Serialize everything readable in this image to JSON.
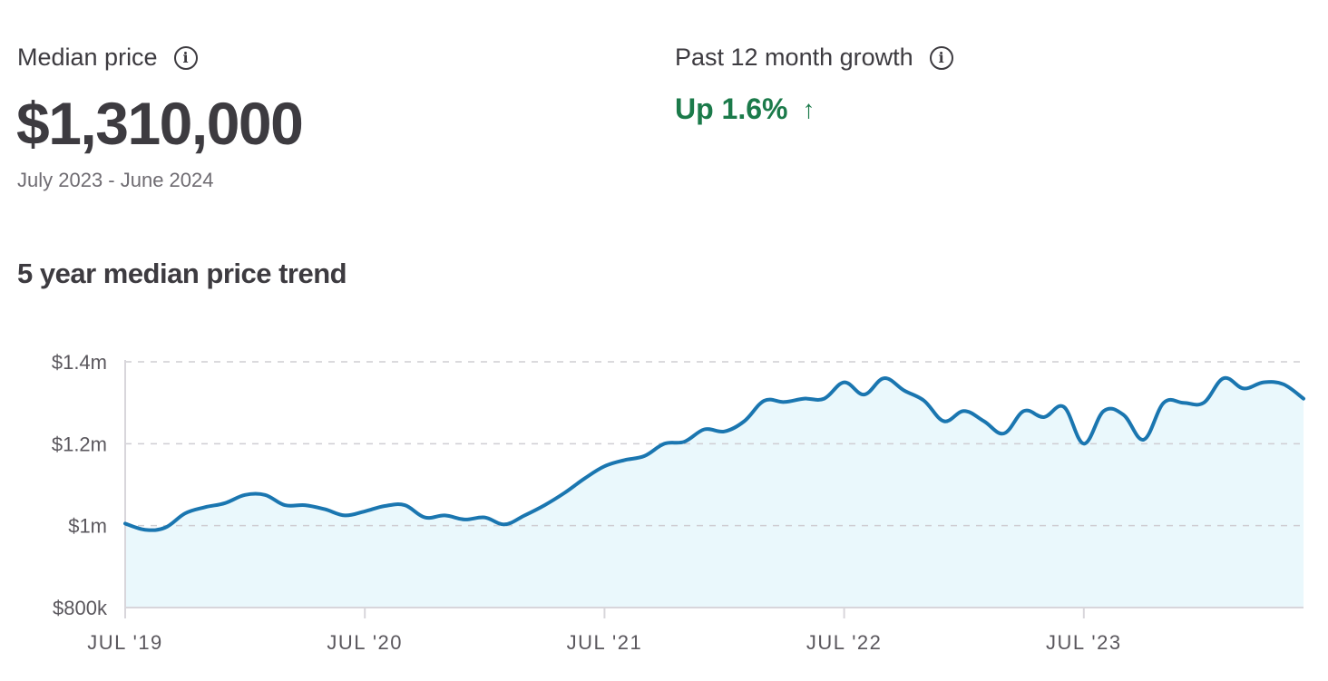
{
  "median_price": {
    "label": "Median price",
    "value": "$1,310,000",
    "period": "July 2023 - June 2024",
    "info_icon": "info-icon"
  },
  "growth": {
    "label": "Past 12 month growth",
    "value": "Up 1.6%",
    "arrow": "↑",
    "info_icon": "info-icon",
    "color": "#1b7a4a"
  },
  "chart_title": "5 year median price trend",
  "chart_data": {
    "type": "area",
    "title": "5 year median price trend",
    "xlabel": "",
    "ylabel": "",
    "ylim": [
      800000,
      1400000
    ],
    "yticks": [
      {
        "value": 1400000,
        "label": "$1.4m"
      },
      {
        "value": 1200000,
        "label": "$1.2m"
      },
      {
        "value": 1000000,
        "label": "$1m"
      },
      {
        "value": 800000,
        "label": "$800k"
      }
    ],
    "xticks": [
      {
        "value": 0,
        "label": "JUL '19"
      },
      {
        "value": 12,
        "label": "JUL '20"
      },
      {
        "value": 24,
        "label": "JUL '21"
      },
      {
        "value": 36,
        "label": "JUL '22"
      },
      {
        "value": 48,
        "label": "JUL '23"
      }
    ],
    "grid": true,
    "line_color": "#1a76b0",
    "fill_color": "#eaf8fc",
    "points": [
      [
        0,
        1005000
      ],
      [
        1,
        990000
      ],
      [
        2,
        995000
      ],
      [
        3,
        1030000
      ],
      [
        4,
        1045000
      ],
      [
        5,
        1055000
      ],
      [
        6,
        1075000
      ],
      [
        7,
        1075000
      ],
      [
        8,
        1050000
      ],
      [
        9,
        1050000
      ],
      [
        10,
        1040000
      ],
      [
        11,
        1025000
      ],
      [
        12,
        1035000
      ],
      [
        13,
        1048000
      ],
      [
        14,
        1050000
      ],
      [
        15,
        1020000
      ],
      [
        16,
        1025000
      ],
      [
        17,
        1015000
      ],
      [
        18,
        1020000
      ],
      [
        19,
        1003000
      ],
      [
        20,
        1025000
      ],
      [
        21,
        1050000
      ],
      [
        22,
        1080000
      ],
      [
        23,
        1115000
      ],
      [
        24,
        1145000
      ],
      [
        25,
        1160000
      ],
      [
        26,
        1170000
      ],
      [
        27,
        1200000
      ],
      [
        28,
        1205000
      ],
      [
        29,
        1235000
      ],
      [
        30,
        1230000
      ],
      [
        31,
        1255000
      ],
      [
        32,
        1305000
      ],
      [
        33,
        1302000
      ],
      [
        34,
        1310000
      ],
      [
        35,
        1310000
      ],
      [
        36,
        1350000
      ],
      [
        37,
        1320000
      ],
      [
        38,
        1360000
      ],
      [
        39,
        1330000
      ],
      [
        40,
        1305000
      ],
      [
        41,
        1255000
      ],
      [
        42,
        1280000
      ],
      [
        43,
        1255000
      ],
      [
        44,
        1225000
      ],
      [
        45,
        1280000
      ],
      [
        46,
        1265000
      ],
      [
        47,
        1290000
      ],
      [
        48,
        1200000
      ],
      [
        49,
        1280000
      ],
      [
        50,
        1270000
      ],
      [
        51,
        1210000
      ],
      [
        52,
        1300000
      ],
      [
        53,
        1300000
      ],
      [
        54,
        1300000
      ],
      [
        55,
        1360000
      ],
      [
        56,
        1335000
      ],
      [
        57,
        1350000
      ],
      [
        58,
        1345000
      ],
      [
        59,
        1310000
      ]
    ]
  }
}
